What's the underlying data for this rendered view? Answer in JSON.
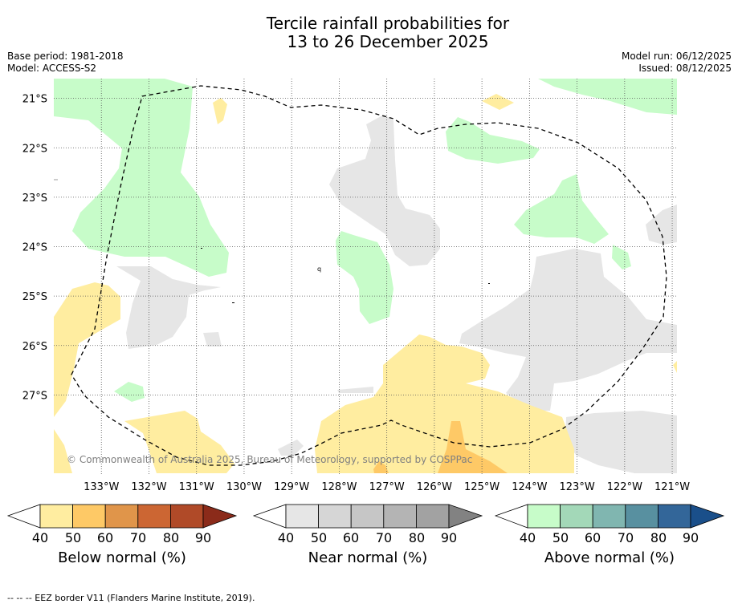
{
  "title": {
    "line1": "Tercile rainfall probabilities for",
    "line2": "13 to 26 December 2025"
  },
  "info": {
    "base_period": "Base period: 1981-2018",
    "model": "Model: ACCESS-S2",
    "model_run": "Model run: 06/12/2025",
    "issued": "Issued: 08/12/2025"
  },
  "map": {
    "lon_range": [
      -134,
      -120.9
    ],
    "lat_range": [
      -28.6,
      -20.6
    ],
    "lon_labels": [
      {
        "lon": -133,
        "text": "133°W"
      },
      {
        "lon": -132,
        "text": "132°W"
      },
      {
        "lon": -131,
        "text": "131°W"
      },
      {
        "lon": -130,
        "text": "130°W"
      },
      {
        "lon": -129,
        "text": "129°W"
      },
      {
        "lon": -128,
        "text": "128°W"
      },
      {
        "lon": -127,
        "text": "127°W"
      },
      {
        "lon": -126,
        "text": "126°W"
      },
      {
        "lon": -125,
        "text": "125°W"
      },
      {
        "lon": -124,
        "text": "124°W"
      },
      {
        "lon": -123,
        "text": "123°W"
      },
      {
        "lon": -122,
        "text": "122°W"
      },
      {
        "lon": -121,
        "text": "121°W"
      }
    ],
    "lat_labels": [
      {
        "lat": -21,
        "text": "21°S"
      },
      {
        "lat": -22,
        "text": "22°S"
      },
      {
        "lat": -23,
        "text": "23°S"
      },
      {
        "lat": -24,
        "text": "24°S"
      },
      {
        "lat": -25,
        "text": "25°S"
      },
      {
        "lat": -26,
        "text": "26°S"
      },
      {
        "lat": -27,
        "text": "27°S"
      }
    ],
    "copyright": "© Commonwealth of Australia 2025, Bureau of Meteorology, supported by COSPPac",
    "colors": {
      "below_40": "#ffeda0",
      "below_50": "#fec966",
      "near_40": "#e6e6e6",
      "above_40": "#c7fcc9",
      "eez": "#000000"
    }
  },
  "colorbars": [
    {
      "label": "Below normal (%)",
      "ticks": [
        "40",
        "50",
        "60",
        "70",
        "80",
        "90"
      ],
      "colors": [
        "#ffeda0",
        "#fec966",
        "#e0954a",
        "#cc6633",
        "#b04a28",
        "#8b2b1a"
      ]
    },
    {
      "label": "Near normal (%)",
      "ticks": [
        "40",
        "50",
        "60",
        "70",
        "80",
        "90"
      ],
      "colors": [
        "#e6e6e6",
        "#d6d6d6",
        "#c6c6c6",
        "#b4b4b4",
        "#a2a2a2",
        "#828282"
      ]
    },
    {
      "label": "Above normal (%)",
      "ticks": [
        "40",
        "50",
        "60",
        "70",
        "80",
        "90"
      ],
      "colors": [
        "#c7fcc9",
        "#a3d8b8",
        "#80b6b0",
        "#5890a0",
        "#336699",
        "#1a4f8a"
      ]
    }
  ],
  "footnote": "--  --  -- EEZ border V11 (Flanders Marine Institute, 2019)."
}
